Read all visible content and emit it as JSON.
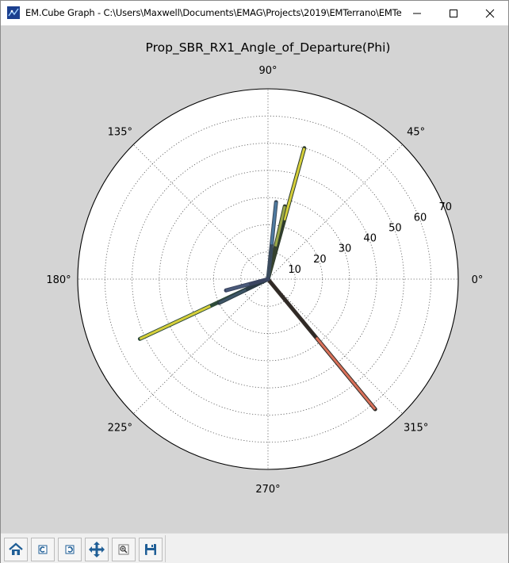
{
  "window": {
    "title": "EM.Cube Graph - C:\\Users\\Maxwell\\Documents\\EMAG\\Projects\\2019\\EMTerrano\\EMTe...",
    "controls": [
      "minimize-icon",
      "maximize-icon",
      "close-icon"
    ]
  },
  "toolbar": {
    "buttons": [
      {
        "name": "home-button",
        "icon": "home-icon"
      },
      {
        "name": "back-button",
        "icon": "back-arrow-icon"
      },
      {
        "name": "forward-button",
        "icon": "forward-arrow-icon"
      },
      {
        "name": "pan-button",
        "icon": "move-icon"
      },
      {
        "name": "zoom-button",
        "icon": "zoom-icon"
      },
      {
        "name": "save-button",
        "icon": "save-icon"
      }
    ]
  },
  "chart_data": {
    "type": "polar-stem",
    "title": "Prop_SBR_RX1_Angle_of_Departure(Phi)",
    "angle_ticks": [
      {
        "deg": 0,
        "label": "0°"
      },
      {
        "deg": 45,
        "label": "45°"
      },
      {
        "deg": 90,
        "label": "90°"
      },
      {
        "deg": 135,
        "label": "135°"
      },
      {
        "deg": 180,
        "label": "180°"
      },
      {
        "deg": 225,
        "label": "225°"
      },
      {
        "deg": 270,
        "label": "270°"
      },
      {
        "deg": 315,
        "label": "315°"
      }
    ],
    "radial_ticks": [
      {
        "value": 10,
        "label": "10"
      },
      {
        "value": 20,
        "label": "20"
      },
      {
        "value": 30,
        "label": "30"
      },
      {
        "value": 40,
        "label": "40"
      },
      {
        "value": 50,
        "label": "50"
      },
      {
        "value": 60,
        "label": "60"
      },
      {
        "value": 70,
        "label": "70"
      }
    ],
    "rmax": 70,
    "grid": true,
    "stems": [
      {
        "angle_deg": 309.5,
        "r": 62.0,
        "color": "#d9715a",
        "dark": "#2f2a26"
      },
      {
        "angle_deg": 74.5,
        "r": 50.0,
        "color": "#d6cf3a",
        "dark": "#2c3a2c"
      },
      {
        "angle_deg": 77.0,
        "r": 27.5,
        "color": "#9aa84a",
        "dark": "#34402e"
      },
      {
        "angle_deg": 84.0,
        "r": 28.5,
        "color": "#4e7aa0",
        "dark": "#3a4a5c"
      },
      {
        "angle_deg": 205.0,
        "r": 52.0,
        "color": "#d6cf3a",
        "dark": "#2c4a3a"
      },
      {
        "angle_deg": 206.0,
        "r": 20.0,
        "color": "#3d5566",
        "dark": "#2a3a44"
      },
      {
        "angle_deg": 195.0,
        "r": 16.0,
        "color": "#4a5a7a",
        "dark": "#3a4460"
      }
    ]
  }
}
